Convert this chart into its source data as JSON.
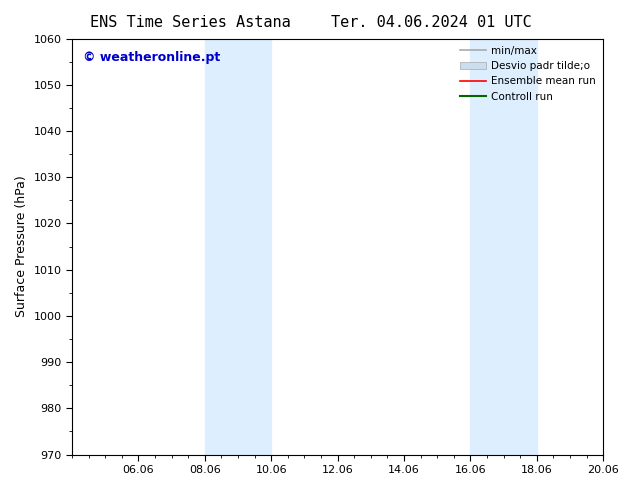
{
  "title_left": "ENS Time Series Astana",
  "title_right": "Ter. 04.06.2024 01 UTC",
  "ylabel": "Surface Pressure (hPa)",
  "ylim": [
    970,
    1060
  ],
  "yticks": [
    970,
    980,
    990,
    1000,
    1010,
    1020,
    1030,
    1040,
    1050,
    1060
  ],
  "xlim_start": 0.0,
  "xlim_end": 16.0,
  "xtick_labels": [
    "06.06",
    "08.06",
    "10.06",
    "12.06",
    "14.06",
    "16.06",
    "18.06",
    "20.06"
  ],
  "xtick_positions": [
    2.0,
    4.0,
    6.0,
    8.0,
    10.0,
    12.0,
    14.0,
    16.0
  ],
  "shaded_bands": [
    {
      "xmin": 4.0,
      "xmax": 6.0
    },
    {
      "xmin": 12.0,
      "xmax": 14.0
    }
  ],
  "shade_color": "#ddeeff",
  "watermark_text": "© weatheronline.pt",
  "watermark_color": "#0000cc",
  "legend_entries": [
    {
      "label": "min/max",
      "color": "#aaaaaa",
      "lw": 1.2,
      "style": "solid"
    },
    {
      "label": "Desvio padr tilde;o",
      "color": "#ccddee",
      "lw": 6,
      "style": "solid"
    },
    {
      "label": "Ensemble mean run",
      "color": "#ff0000",
      "lw": 1.2,
      "style": "solid"
    },
    {
      "label": "Controll run",
      "color": "#006600",
      "lw": 1.5,
      "style": "solid"
    }
  ],
  "bg_color": "#ffffff",
  "plot_bg_color": "#ffffff",
  "title_fontsize": 11,
  "axis_label_fontsize": 9,
  "tick_fontsize": 8,
  "watermark_fontsize": 9
}
